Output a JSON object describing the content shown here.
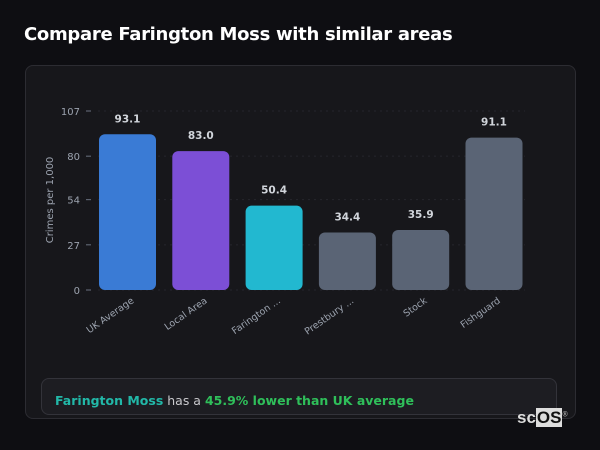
{
  "header": {
    "title": "Compare Farington Moss with similar areas"
  },
  "chart_data": {
    "type": "bar",
    "categories": [
      "UK Average",
      "Local Area",
      "Farington ...",
      "Prestbury ...",
      "Stock",
      "Fishguard"
    ],
    "values": [
      93.1,
      83.0,
      50.4,
      34.4,
      35.9,
      91.1
    ],
    "value_labels": [
      "93.1",
      "83.0",
      "50.4",
      "34.4",
      "35.9",
      "91.1"
    ],
    "colors": [
      "#3a7bd5",
      "#7c4fd6",
      "#22b8d0",
      "#5a6475",
      "#5a6475",
      "#5a6475"
    ],
    "ylabel": "Crimes per 1,000",
    "yticks": [
      0,
      27,
      54,
      80,
      107
    ],
    "ylim": [
      0,
      107
    ],
    "grid": true
  },
  "summary": {
    "area": "Farington Moss",
    "middle": " has a ",
    "comparison": "45.9% lower than UK average"
  },
  "logo": {
    "text_plain": "sc",
    "text_box": "OS",
    "mark": "®"
  }
}
